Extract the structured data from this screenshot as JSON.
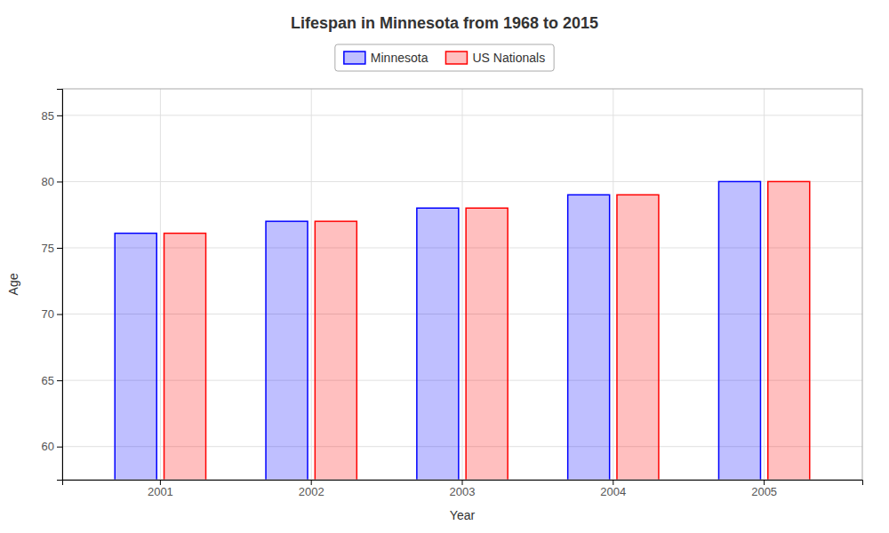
{
  "chart_data": {
    "type": "bar",
    "title": "Lifespan in Minnesota from 1968 to 2015",
    "x_label": "Year",
    "y_label": "Age",
    "categories": [
      "2001",
      "2002",
      "2003",
      "2004",
      "2005"
    ],
    "series": [
      {
        "name": "Minnesota",
        "color": "#0000ff",
        "values": [
          76.1,
          77.0,
          78.0,
          79.0,
          80.0
        ]
      },
      {
        "name": "US Nationals",
        "color": "#ff0000",
        "values": [
          76.1,
          77.0,
          78.0,
          79.0,
          80.0
        ]
      }
    ],
    "ylim": [
      57.5,
      87
    ],
    "yticks": [
      60,
      65,
      70,
      75,
      80,
      85
    ],
    "grid": true,
    "legend": "top"
  }
}
